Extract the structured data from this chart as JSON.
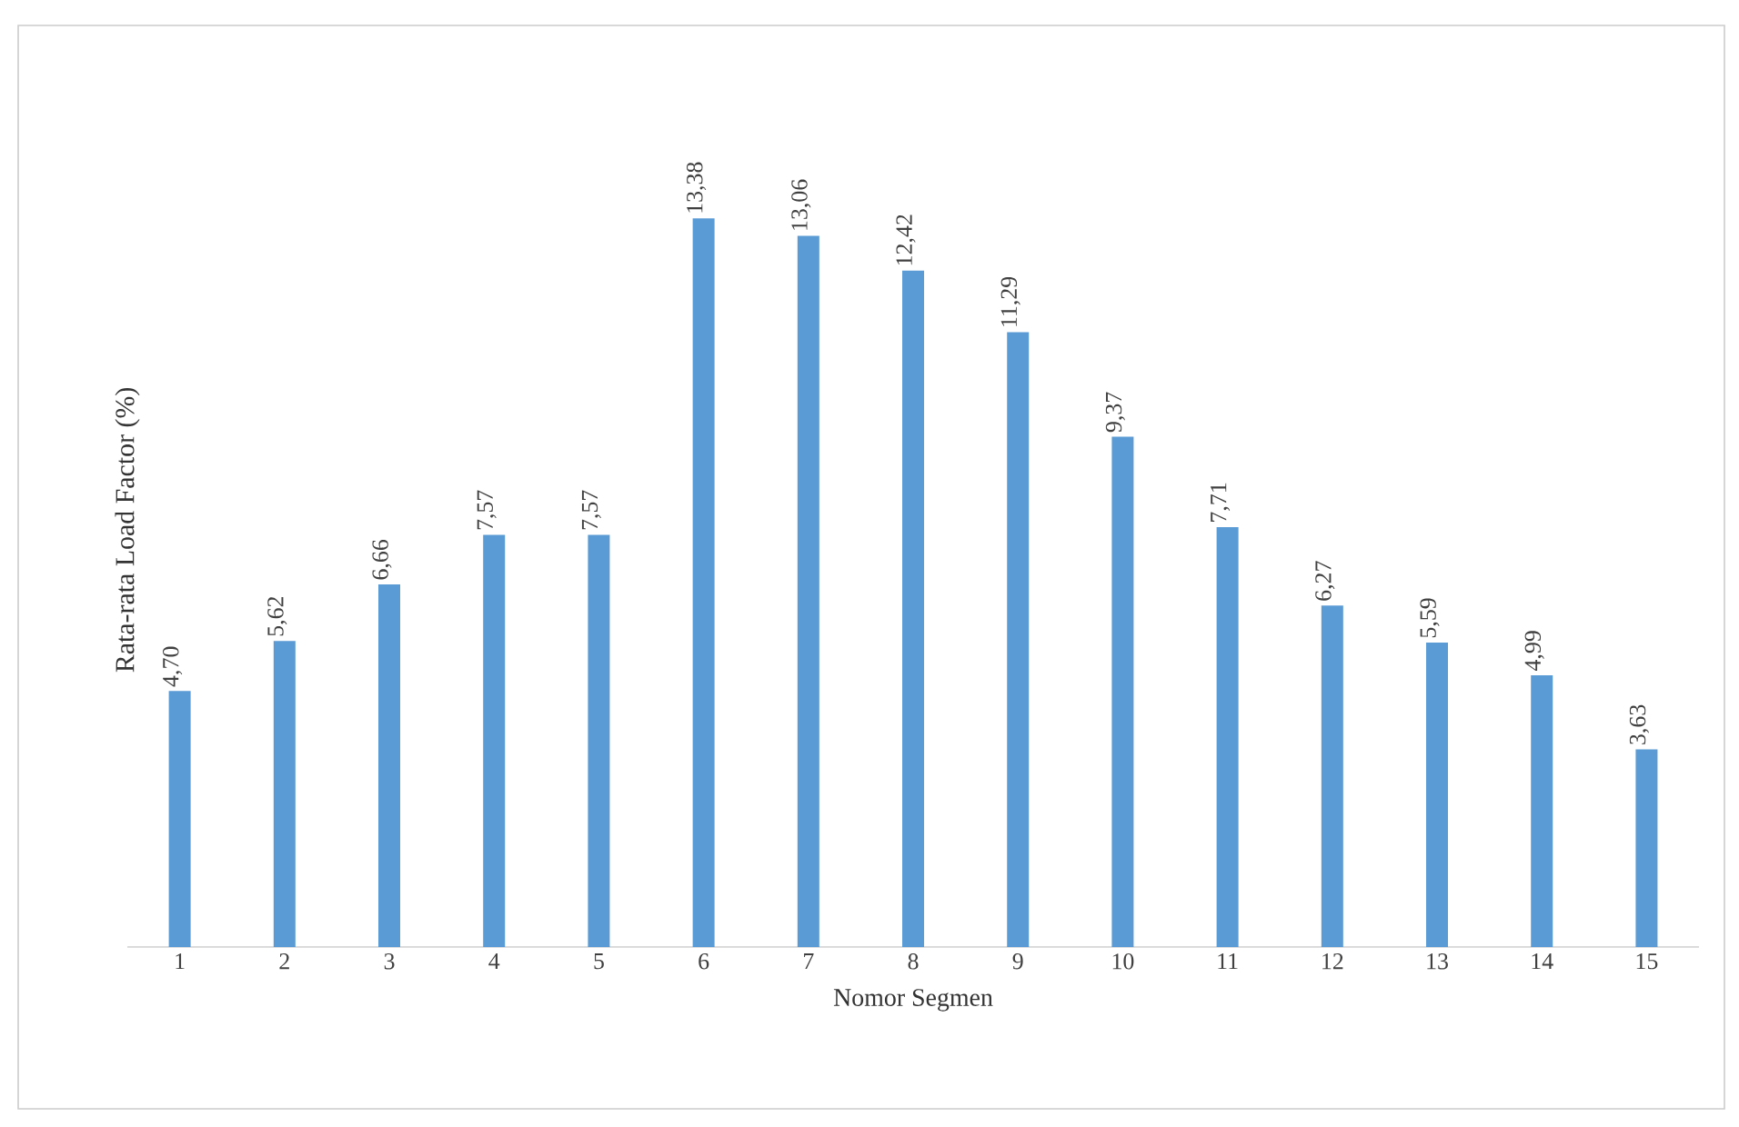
{
  "chart_data": {
    "type": "bar",
    "xlabel": "Nomor Segmen",
    "ylabel": "Rata-rata Load Factor (%)",
    "categories": [
      "1",
      "2",
      "3",
      "4",
      "5",
      "6",
      "7",
      "8",
      "9",
      "10",
      "11",
      "12",
      "13",
      "14",
      "15"
    ],
    "values": [
      4.7,
      5.62,
      6.66,
      7.57,
      7.57,
      13.38,
      13.06,
      12.42,
      11.29,
      9.37,
      7.71,
      6.27,
      5.59,
      4.99,
      3.63
    ],
    "value_labels": [
      "4,70",
      "5,62",
      "6,66",
      "7,57",
      "7,57",
      "13,38",
      "13,06",
      "12,42",
      "11,29",
      "9,37",
      "7,71",
      "6,27",
      "5,59",
      "4,99",
      "3,63"
    ],
    "color": "#5b9bd5"
  }
}
